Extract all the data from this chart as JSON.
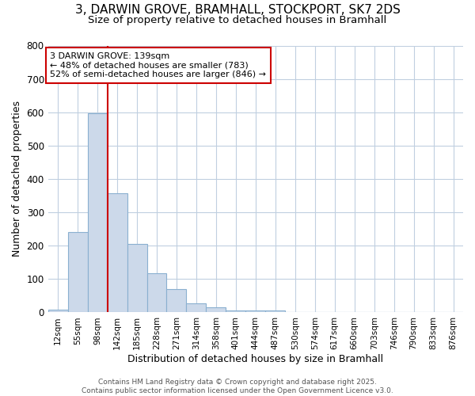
{
  "title_line1": "3, DARWIN GROVE, BRAMHALL, STOCKPORT, SK7 2DS",
  "title_line2": "Size of property relative to detached houses in Bramhall",
  "xlabel": "Distribution of detached houses by size in Bramhall",
  "ylabel": "Number of detached properties",
  "bar_labels": [
    "12sqm",
    "55sqm",
    "98sqm",
    "142sqm",
    "185sqm",
    "228sqm",
    "271sqm",
    "314sqm",
    "358sqm",
    "401sqm",
    "444sqm",
    "487sqm",
    "530sqm",
    "574sqm",
    "617sqm",
    "660sqm",
    "703sqm",
    "746sqm",
    "790sqm",
    "833sqm",
    "876sqm"
  ],
  "bar_values": [
    8,
    242,
    596,
    357,
    206,
    117,
    71,
    28,
    15,
    7,
    5,
    7,
    0,
    0,
    0,
    0,
    0,
    0,
    0,
    0,
    0
  ],
  "bar_color": "#ccd9ea",
  "bar_edge_color": "#8ab0d0",
  "ylim": [
    0,
    800
  ],
  "yticks": [
    0,
    100,
    200,
    300,
    400,
    500,
    600,
    700,
    800
  ],
  "vline_x_index": 2.5,
  "vline_color": "#cc0000",
  "annotation_text_line1": "3 DARWIN GROVE: 139sqm",
  "annotation_text_line2": "← 48% of detached houses are smaller (783)",
  "annotation_text_line3": "52% of semi-detached houses are larger (846) →",
  "grid_color": "#c0cfe0",
  "background_color": "#ffffff",
  "footer_line1": "Contains HM Land Registry data © Crown copyright and database right 2025.",
  "footer_line2": "Contains public sector information licensed under the Open Government Licence v3.0."
}
